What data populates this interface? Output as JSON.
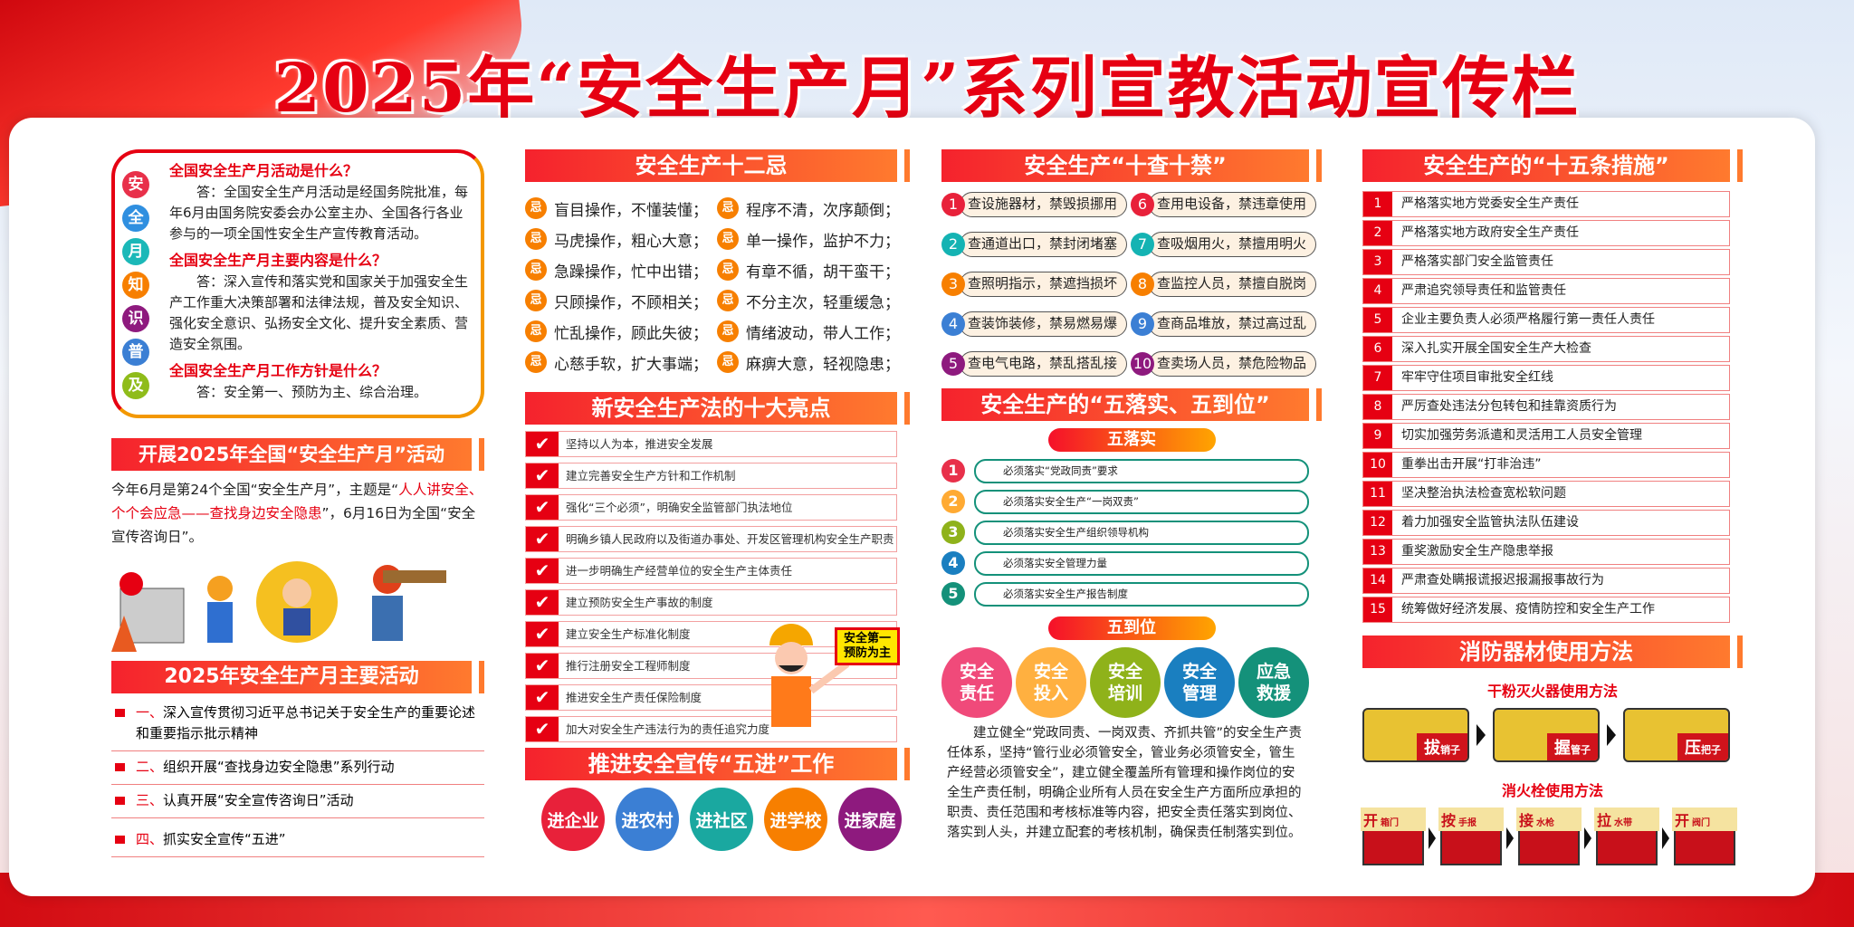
{
  "title": "2025年“安全生产月”系列宣教活动宣传栏",
  "knowledge": {
    "side_chars": [
      "安",
      "全",
      "月",
      "知",
      "识",
      "普",
      "及"
    ],
    "side_colors": [
      "#e8304a",
      "#2f8fe0",
      "#1bb8b8",
      "#f77f00",
      "#8e1a7e",
      "#3b7fd4",
      "#8fbc1a"
    ],
    "qa": [
      {
        "q": "全国安全生产月活动是什么？",
        "a": "答：全国安全生产月活动是经国务院批准，每年6月由国务院安委会办公室主办、全国各行各业参与的一项全国性安全生产宣传教育活动。"
      },
      {
        "q": "全国安全生产月主要内容是什么？",
        "a": "答：深入宣传和落实党和国家关于加强安全生产工作重大决策部署和法律法规，普及安全知识、强化安全意识、弘扬安全文化、提升安全素质、营造安全氛围。"
      },
      {
        "q": "全国安全生产月工作方针是什么？",
        "a": "答：安全第一、预防为主、综合治理。"
      }
    ]
  },
  "launch": {
    "header": "开展2025年全国“安全生产月”活动",
    "text_a": "今年6月是第24个全国“安全生产月”，主题是“",
    "text_red": "人人讲安全、个个会应急——查找身边安全隐患",
    "text_b": "”，6月16日为全国“安全宣传咨询日”。"
  },
  "activities": {
    "header": "2025年安全生产月主要活动",
    "items": [
      {
        "num": "一、",
        "text": "深入宣传贯彻习近平总书记关于安全生产的重要论述和重要指示批示精神"
      },
      {
        "num": "二、",
        "text": "组织开展“查找身边安全隐患”系列行动"
      },
      {
        "num": "三、",
        "text": "认真开展“安全宣传咨询日”活动"
      },
      {
        "num": "四、",
        "text": "抓实安全宣传“五进”"
      }
    ]
  },
  "twelve": {
    "header": "安全生产十二忌",
    "icon": "忌",
    "items": [
      "盲目操作，不懂装懂；",
      "程序不清，次序颠倒；",
      "马虎操作，粗心大意；",
      "单一操作，监护不力；",
      "急躁操作，忙中出错；",
      "有章不循，胡干蛮干；",
      "只顾操作，不顾相关；",
      "不分主次，轻重缓急；",
      "忙乱操作，顾此失彼；",
      "情绪波动，带人工作；",
      "心慈手软，扩大事端；",
      "麻痹大意，轻视隐患；"
    ]
  },
  "highlights": {
    "header": "新安全生产法的十大亮点",
    "sign": "安全第一 预防为主",
    "items": [
      "坚持以人为本，推进安全发展",
      "建立完善安全生产方针和工作机制",
      "强化“三个必须”，明确安全监管部门执法地位",
      "明确乡镇人民政府以及街道办事处、开发区管理机构安全生产职责",
      "进一步明确生产经营单位的安全生产主体责任",
      "建立预防安全生产事故的制度",
      "建立安全生产标准化制度",
      "推行注册安全工程师制度",
      "推进安全生产责任保险制度",
      "加大对安全生产违法行为的责任追究力度"
    ]
  },
  "five_into": {
    "header": "推进安全宣传“五进”工作",
    "items": [
      "进企业",
      "进农村",
      "进社区",
      "进学校",
      "进家庭"
    ],
    "colors": [
      "#e8213a",
      "#3b7fd4",
      "#1aa8a0",
      "#f77f00",
      "#8e1a7e"
    ]
  },
  "ten_checks": {
    "header": "安全生产“十查十禁”",
    "colors": [
      "#e8213a",
      "#14b3b3",
      "#f77f00",
      "#3b7fd4",
      "#8e1a7e"
    ],
    "left": [
      "查设施器材，禁毁损挪用",
      "查通道出口，禁封闭堵塞",
      "查照明指示，禁遮挡损坏",
      "查装饰装修，禁易燃易爆",
      "查电气电路，禁乱搭乱接"
    ],
    "right": [
      "查用电设备，禁违章使用",
      "查吸烟用火，禁擅用明火",
      "查监控人员，禁擅自脱岗",
      "查商品堆放，禁过高过乱",
      "查卖场人员，禁危险物品"
    ],
    "right_colors": [
      "#e8213a",
      "#14b3b3",
      "#f77f00",
      "#3b7fd4",
      "#8e1a7e"
    ]
  },
  "five": {
    "header": "安全生产的“五落实、五到位”",
    "luoshi_label": "五落实",
    "luoshi": [
      "必须落实“党政同责”要求",
      "必须落实安全生产“一岗双责”",
      "必须落实安全生产组织领导机构",
      "必须落实安全管理力量",
      "必须落实安全生产报告制度"
    ],
    "luoshi_colors": [
      "#e8304a",
      "#ffaa33",
      "#8fb21a",
      "#1a7fc0",
      "#14917a"
    ],
    "daowei_label": "五到位",
    "daowei": [
      "安全责任",
      "安全投入",
      "安全培训",
      "安全管理",
      "应急救援"
    ],
    "daowei_colors": [
      "#f04a7a",
      "#ffb040",
      "#8fb21a",
      "#1a7fc0",
      "#14917a"
    ],
    "text": "建立健全“党政同责、一岗双责、齐抓共管”的安全生产责任体系，坚持“管行业必须管安全，管业务必须管安全，管生产经营必须管安全”，建立健全覆盖所有管理和操作岗位的安全生产责任制，明确企业所有人员在安全生产方面所应承担的职责、责任范围和考核标准等内容，把安全责任落实到岗位、落实到人头，并建立配套的考核机制，确保责任制落实到位。"
  },
  "fifteen": {
    "header": "安全生产的“十五条措施”",
    "items": [
      "严格落实地方党委安全生产责任",
      "严格落实地方政府安全生产责任",
      "严格落实部门安全监管责任",
      "严肃追究领导责任和监管责任",
      "企业主要负责人必须严格履行第一责任人责任",
      "深入扎实开展全国安全生产大检查",
      "牢牢守住项目审批安全红线",
      "严厉查处违法分包转包和挂靠资质行为",
      "切实加强劳务派遣和灵活用工人员安全管理",
      "重拳出击开展“打非治违”",
      "坚决整治执法检查宽松软问题",
      "着力加强安全监管执法队伍建设",
      "重奖激励安全生产隐患举报",
      "严肃查处瞒报谎报迟报漏报事故行为",
      "统筹做好经济发展、疫情防控和安全生产工作"
    ]
  },
  "fire": {
    "header": "消防器材使用方法",
    "ext_title": "干粉灭火器使用方法",
    "ext_steps": [
      {
        "big": "拔",
        "small": "销子"
      },
      {
        "big": "握",
        "small": "管子"
      },
      {
        "big": "压",
        "small": "把子"
      }
    ],
    "hyd_title": "消火栓使用方法",
    "hyd_steps": [
      {
        "big": "开",
        "small": "箱门"
      },
      {
        "big": "按",
        "small": "手报"
      },
      {
        "big": "接",
        "small": "水枪"
      },
      {
        "big": "拉",
        "small": "水带"
      },
      {
        "big": "开",
        "small": "阀门"
      }
    ]
  }
}
